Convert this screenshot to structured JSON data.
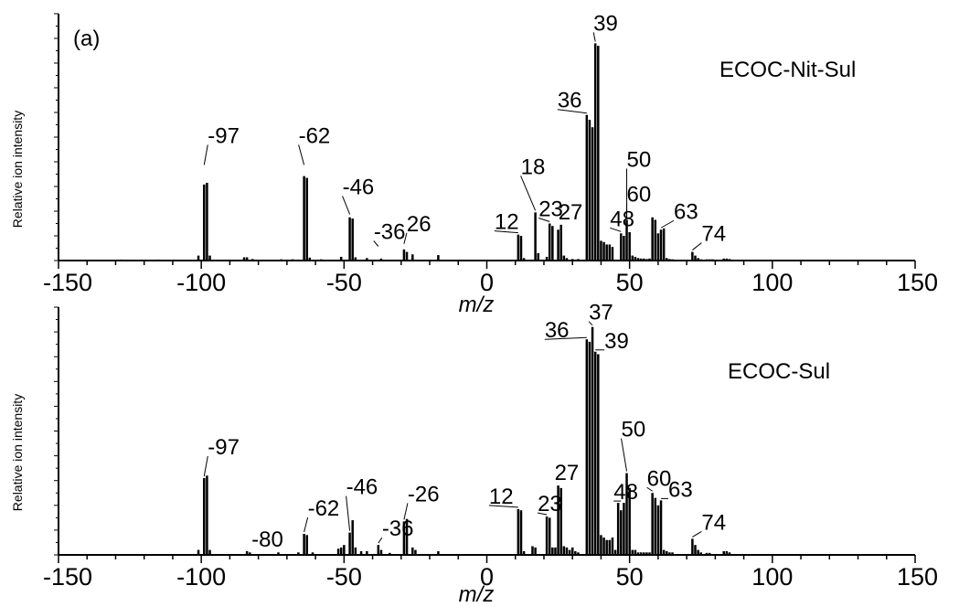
{
  "chart_data": [
    {
      "type": "bar",
      "panel_label": "(a)",
      "sample_label": "ECOC-Nit-Sul",
      "xlabel": "m/z",
      "ylabel": "Relative ion intensity",
      "xlim": [
        -150,
        150
      ],
      "ylim": [
        0,
        100
      ],
      "xticks": [
        "-150",
        "-100",
        "-50",
        "0",
        "50",
        "100",
        "150"
      ],
      "bars": [
        {
          "x": -128,
          "y": 0.4
        },
        {
          "x": -115,
          "y": 0.4
        },
        {
          "x": -101,
          "y": 2
        },
        {
          "x": -99,
          "y": 30.8
        },
        {
          "x": -98,
          "y": 31.5
        },
        {
          "x": -97,
          "y": 2
        },
        {
          "x": -85,
          "y": 1.3
        },
        {
          "x": -84,
          "y": 1.3
        },
        {
          "x": -82,
          "y": 0.6
        },
        {
          "x": -72,
          "y": 0.5
        },
        {
          "x": -68,
          "y": 0.5
        },
        {
          "x": -64,
          "y": 34.2
        },
        {
          "x": -63,
          "y": 33.5
        },
        {
          "x": -62,
          "y": 1.2
        },
        {
          "x": -58,
          "y": 0.5
        },
        {
          "x": -51,
          "y": 1.5
        },
        {
          "x": -48,
          "y": 17.5
        },
        {
          "x": -47,
          "y": 17
        },
        {
          "x": -46,
          "y": 1.3
        },
        {
          "x": -42,
          "y": 1
        },
        {
          "x": -37,
          "y": 0.8
        },
        {
          "x": -29,
          "y": 4.5
        },
        {
          "x": -28,
          "y": 3.5
        },
        {
          "x": -26,
          "y": 2.5
        },
        {
          "x": -17,
          "y": 2.2
        },
        {
          "x": 11,
          "y": 10.5
        },
        {
          "x": 12,
          "y": 10
        },
        {
          "x": 13,
          "y": 1
        },
        {
          "x": 17,
          "y": 19.5
        },
        {
          "x": 18,
          "y": 3
        },
        {
          "x": 21,
          "y": 1.5
        },
        {
          "x": 22,
          "y": 15
        },
        {
          "x": 23,
          "y": 14
        },
        {
          "x": 25,
          "y": 12.5
        },
        {
          "x": 26,
          "y": 14.5
        },
        {
          "x": 27,
          "y": 2
        },
        {
          "x": 28,
          "y": 1
        },
        {
          "x": 30,
          "y": 0.6
        },
        {
          "x": 32,
          "y": 0.6
        },
        {
          "x": 35,
          "y": 59
        },
        {
          "x": 36,
          "y": 57
        },
        {
          "x": 37,
          "y": 54
        },
        {
          "x": 38,
          "y": 88
        },
        {
          "x": 39,
          "y": 87
        },
        {
          "x": 40,
          "y": 8
        },
        {
          "x": 41,
          "y": 7.5
        },
        {
          "x": 42,
          "y": 6.5
        },
        {
          "x": 43,
          "y": 6.5
        },
        {
          "x": 44,
          "y": 5.5
        },
        {
          "x": 47,
          "y": 11
        },
        {
          "x": 48,
          "y": 10
        },
        {
          "x": 49,
          "y": 16.5
        },
        {
          "x": 50,
          "y": 11.5
        },
        {
          "x": 51,
          "y": 2
        },
        {
          "x": 52,
          "y": 1.5
        },
        {
          "x": 53,
          "y": 1
        },
        {
          "x": 54,
          "y": 0.8
        },
        {
          "x": 55,
          "y": 0.8
        },
        {
          "x": 56,
          "y": 0.6
        },
        {
          "x": 57,
          "y": 0.8
        },
        {
          "x": 58,
          "y": 17.5
        },
        {
          "x": 59,
          "y": 16.5
        },
        {
          "x": 60,
          "y": 11
        },
        {
          "x": 61,
          "y": 12.5
        },
        {
          "x": 62,
          "y": 13
        },
        {
          "x": 63,
          "y": 1
        },
        {
          "x": 64,
          "y": 0.6
        },
        {
          "x": 65,
          "y": 0.5
        },
        {
          "x": 72,
          "y": 3.5
        },
        {
          "x": 73,
          "y": 2
        },
        {
          "x": 74,
          "y": 1
        },
        {
          "x": 75,
          "y": 0.5
        },
        {
          "x": 77,
          "y": 0.5
        },
        {
          "x": 78,
          "y": 0.5
        },
        {
          "x": 79,
          "y": 0.5
        },
        {
          "x": 83,
          "y": 0.8
        },
        {
          "x": 84,
          "y": 0.8
        },
        {
          "x": 85,
          "y": 0.6
        }
      ],
      "peak_labels": [
        {
          "text": "-97",
          "peak": -99,
          "y": 38
        },
        {
          "text": "-62",
          "peak": -64,
          "y": 38
        },
        {
          "text": "-46",
          "peak": -48,
          "y": 18
        },
        {
          "text": "-36",
          "peak": -38,
          "y": 5
        },
        {
          "text": "26",
          "peak": -29,
          "y": 6
        },
        {
          "text": "12",
          "peak": 11,
          "y": 10.5
        },
        {
          "text": "18",
          "peak": 17,
          "y": 19.5
        },
        {
          "text": "23",
          "peak": 22,
          "y": 15
        },
        {
          "text": "27",
          "peak": 26,
          "y": 14.5
        },
        {
          "text": "36",
          "peak": 35,
          "y": 59
        },
        {
          "text": "39",
          "peak": 38,
          "y": 88
        },
        {
          "text": "48",
          "peak": 47,
          "y": 11
        },
        {
          "text": "50",
          "peak": 49,
          "y": 16.5
        },
        {
          "text": "60",
          "peak": 49,
          "y": 16.5
        },
        {
          "text": "63",
          "peak": 61,
          "y": 12.5
        },
        {
          "text": "74",
          "peak": 72,
          "y": 3.5
        }
      ]
    },
    {
      "type": "bar",
      "sample_label": "ECOC-Sul",
      "xlabel": "m/z",
      "ylabel": "Relative ion intensity",
      "xlim": [
        -150,
        150
      ],
      "ylim": [
        0,
        100
      ],
      "xticks": [
        "-150",
        "-100",
        "-50",
        "0",
        "50",
        "100",
        "150"
      ],
      "bars": [
        {
          "x": -101,
          "y": 2
        },
        {
          "x": -99,
          "y": 31
        },
        {
          "x": -98,
          "y": 32
        },
        {
          "x": -97,
          "y": 2
        },
        {
          "x": -84,
          "y": 1.5
        },
        {
          "x": -83,
          "y": 1
        },
        {
          "x": -73,
          "y": 1
        },
        {
          "x": -66,
          "y": 1
        },
        {
          "x": -64,
          "y": 8.5
        },
        {
          "x": -63,
          "y": 8
        },
        {
          "x": -61,
          "y": 1
        },
        {
          "x": -52,
          "y": 2.5
        },
        {
          "x": -51,
          "y": 3
        },
        {
          "x": -50,
          "y": 4
        },
        {
          "x": -48,
          "y": 9
        },
        {
          "x": -47,
          "y": 14
        },
        {
          "x": -46,
          "y": 3
        },
        {
          "x": -44,
          "y": 1.5
        },
        {
          "x": -42,
          "y": 1.5
        },
        {
          "x": -38,
          "y": 4
        },
        {
          "x": -37,
          "y": 2
        },
        {
          "x": -34,
          "y": 0.8
        },
        {
          "x": -29,
          "y": 13.5
        },
        {
          "x": -28,
          "y": 14.5
        },
        {
          "x": -26,
          "y": 3
        },
        {
          "x": -25,
          "y": 2
        },
        {
          "x": -17,
          "y": 1.5
        },
        {
          "x": 11,
          "y": 18.5
        },
        {
          "x": 12,
          "y": 18
        },
        {
          "x": 13,
          "y": 1.5
        },
        {
          "x": 16,
          "y": 3.5
        },
        {
          "x": 17,
          "y": 3
        },
        {
          "x": 21,
          "y": 15.5
        },
        {
          "x": 22,
          "y": 15
        },
        {
          "x": 23,
          "y": 3
        },
        {
          "x": 24,
          "y": 3
        },
        {
          "x": 25,
          "y": 28
        },
        {
          "x": 26,
          "y": 27
        },
        {
          "x": 27,
          "y": 3.5
        },
        {
          "x": 28,
          "y": 3
        },
        {
          "x": 29,
          "y": 2
        },
        {
          "x": 30,
          "y": 3
        },
        {
          "x": 31,
          "y": 1.5
        },
        {
          "x": 32,
          "y": 1
        },
        {
          "x": 35,
          "y": 87
        },
        {
          "x": 36,
          "y": 86
        },
        {
          "x": 37,
          "y": 92
        },
        {
          "x": 38,
          "y": 82
        },
        {
          "x": 39,
          "y": 81
        },
        {
          "x": 40,
          "y": 8
        },
        {
          "x": 41,
          "y": 7
        },
        {
          "x": 42,
          "y": 6
        },
        {
          "x": 43,
          "y": 6
        },
        {
          "x": 44,
          "y": 7
        },
        {
          "x": 45,
          "y": 2
        },
        {
          "x": 46,
          "y": 21
        },
        {
          "x": 47,
          "y": 18
        },
        {
          "x": 48,
          "y": 21
        },
        {
          "x": 49,
          "y": 33
        },
        {
          "x": 50,
          "y": 27
        },
        {
          "x": 51,
          "y": 2
        },
        {
          "x": 52,
          "y": 2
        },
        {
          "x": 53,
          "y": 1
        },
        {
          "x": 54,
          "y": 1
        },
        {
          "x": 55,
          "y": 1
        },
        {
          "x": 56,
          "y": 1
        },
        {
          "x": 57,
          "y": 1
        },
        {
          "x": 58,
          "y": 25
        },
        {
          "x": 59,
          "y": 23
        },
        {
          "x": 60,
          "y": 20
        },
        {
          "x": 61,
          "y": 22
        },
        {
          "x": 62,
          "y": 2
        },
        {
          "x": 63,
          "y": 1.5
        },
        {
          "x": 64,
          "y": 1
        },
        {
          "x": 65,
          "y": 1
        },
        {
          "x": 72,
          "y": 6.5
        },
        {
          "x": 73,
          "y": 4
        },
        {
          "x": 74,
          "y": 2
        },
        {
          "x": 75,
          "y": 1
        },
        {
          "x": 77,
          "y": 0.8
        },
        {
          "x": 78,
          "y": 0.8
        },
        {
          "x": 83,
          "y": 1.5
        },
        {
          "x": 84,
          "y": 1.5
        },
        {
          "x": 85,
          "y": 1
        }
      ],
      "peak_labels": [
        {
          "text": "-97",
          "peak": -99,
          "y": 31
        },
        {
          "text": "-80",
          "peak": -84,
          "y": 1.5
        },
        {
          "text": "-62",
          "peak": -64,
          "y": 8.5
        },
        {
          "text": "-46",
          "peak": -48,
          "y": 9
        },
        {
          "text": "-36",
          "peak": -38,
          "y": 4
        },
        {
          "text": "-26",
          "peak": -29,
          "y": 13.5
        },
        {
          "text": "12",
          "peak": 11,
          "y": 18.5
        },
        {
          "text": "23",
          "peak": 21,
          "y": 15.5
        },
        {
          "text": "27",
          "peak": 25,
          "y": 28
        },
        {
          "text": "36",
          "peak": 35,
          "y": 87
        },
        {
          "text": "37",
          "peak": 37,
          "y": 92
        },
        {
          "text": "39",
          "peak": 38,
          "y": 82
        },
        {
          "text": "48",
          "peak": 47,
          "y": 21
        },
        {
          "text": "50",
          "peak": 49,
          "y": 33
        },
        {
          "text": "60",
          "peak": 58,
          "y": 25
        },
        {
          "text": "63",
          "peak": 61,
          "y": 22
        },
        {
          "text": "74",
          "peak": 72,
          "y": 6.5
        }
      ]
    }
  ]
}
